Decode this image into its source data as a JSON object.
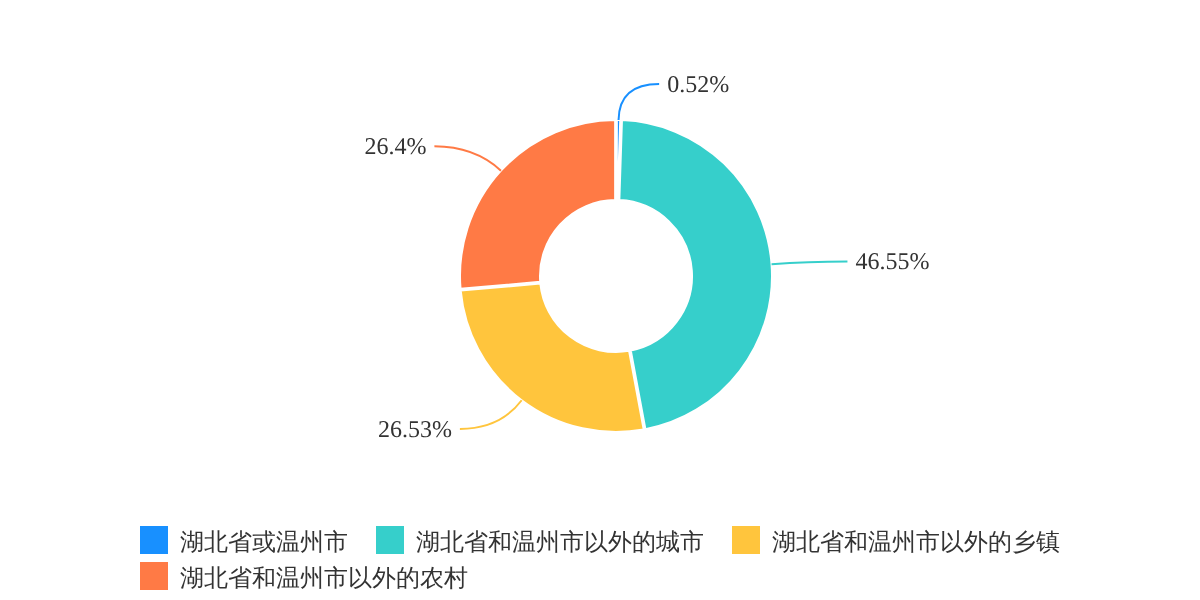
{
  "chart_data": {
    "type": "donut",
    "categories": [
      "湖北省或温州市",
      "湖北省和温州市以外的城市",
      "湖北省和温州市以外的乡镇",
      "湖北省和温州市以外的农村"
    ],
    "values": [
      0.52,
      46.55,
      26.53,
      26.4
    ],
    "colors": [
      "#1890ff",
      "#36cfcb",
      "#ffc53d",
      "#ff7a45"
    ],
    "value_labels": [
      "0.52%",
      "46.55%",
      "26.53%",
      "26.4%"
    ],
    "legend": "bottom"
  }
}
